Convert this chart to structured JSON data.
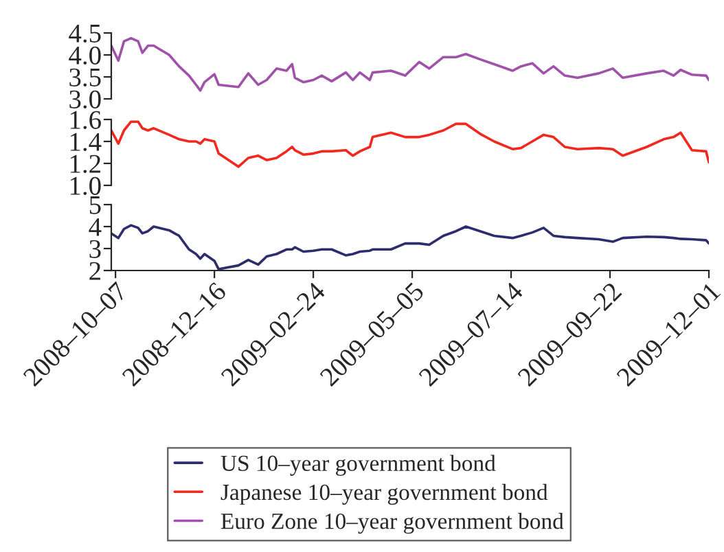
{
  "chart_data": [
    {
      "type": "line",
      "xlim": [
        "2008-10-04",
        "2009-12-01"
      ],
      "ylim": [
        3.0,
        4.5
      ],
      "yticks": [
        {
          "value": 3.0,
          "label": "3.0"
        },
        3.5,
        {
          "value": 4.0,
          "label": "4.0"
        },
        4.5
      ],
      "tick_labels": "y",
      "legend": "bottom",
      "grid": false,
      "series": [
        {
          "name": "Euro Zone 10–year government bond",
          "color": "#a052aa",
          "x": [
            "2008-10-04",
            "2008-10-09",
            "2008-10-13",
            "2008-10-18",
            "2008-10-23",
            "2008-10-26",
            "2008-10-30",
            "2008-11-03",
            "2008-11-14",
            "2008-11-21",
            "2008-11-28",
            "2008-12-03",
            "2008-12-06",
            "2008-12-09",
            "2008-12-16",
            "2008-12-19",
            "2009-01-02",
            "2009-01-09",
            "2009-01-16",
            "2009-01-22",
            "2009-01-29",
            "2009-02-05",
            "2009-02-09",
            "2009-02-11",
            "2009-02-17",
            "2009-02-24",
            "2009-03-02",
            "2009-03-09",
            "2009-03-19",
            "2009-03-24",
            "2009-03-29",
            "2009-04-05",
            "2009-04-07",
            "2009-04-20",
            "2009-04-30",
            "2009-05-10",
            "2009-05-17",
            "2009-05-27",
            "2009-06-05",
            "2009-06-12",
            "2009-06-22",
            "2009-07-02",
            "2009-07-15",
            "2009-07-21",
            "2009-07-29",
            "2009-08-06",
            "2009-08-13",
            "2009-08-21",
            "2009-08-30",
            "2009-09-14",
            "2009-09-24",
            "2009-10-01",
            "2009-10-18",
            "2009-10-30",
            "2009-11-06",
            "2009-11-11",
            "2009-11-19",
            "2009-11-29",
            "2009-12-01"
          ],
          "values": [
            4.21,
            3.87,
            4.31,
            4.38,
            4.31,
            4.05,
            4.21,
            4.21,
            4.0,
            3.74,
            3.53,
            3.32,
            3.19,
            3.38,
            3.56,
            3.32,
            3.27,
            3.58,
            3.32,
            3.43,
            3.69,
            3.64,
            3.79,
            3.48,
            3.38,
            3.43,
            3.53,
            3.4,
            3.6,
            3.43,
            3.6,
            3.43,
            3.6,
            3.64,
            3.53,
            3.84,
            3.69,
            3.95,
            3.95,
            4.02,
            3.9,
            3.79,
            3.64,
            3.74,
            3.81,
            3.58,
            3.74,
            3.53,
            3.48,
            3.58,
            3.69,
            3.48,
            3.58,
            3.64,
            3.53,
            3.66,
            3.55,
            3.53,
            3.43
          ]
        }
      ]
    },
    {
      "type": "line",
      "xlim": [
        "2008-10-04",
        "2009-12-01"
      ],
      "ylim": [
        1.0,
        1.6
      ],
      "yticks": [
        {
          "value": 1.0,
          "label": "1.0"
        },
        1.2,
        1.4,
        1.6
      ],
      "tick_labels": "y",
      "legend": "bottom",
      "grid": false,
      "series": [
        {
          "name": "Japanese 10–year government bond",
          "color": "#f0281e",
          "x": [
            "2008-10-04",
            "2008-10-09",
            "2008-10-13",
            "2008-10-18",
            "2008-10-23",
            "2008-10-26",
            "2008-10-30",
            "2008-11-03",
            "2008-11-14",
            "2008-11-21",
            "2008-11-28",
            "2008-12-03",
            "2008-12-06",
            "2008-12-09",
            "2008-12-16",
            "2008-12-19",
            "2009-01-02",
            "2009-01-09",
            "2009-01-16",
            "2009-01-22",
            "2009-01-29",
            "2009-02-05",
            "2009-02-09",
            "2009-02-11",
            "2009-02-17",
            "2009-02-24",
            "2009-03-02",
            "2009-03-09",
            "2009-03-19",
            "2009-03-24",
            "2009-03-29",
            "2009-04-05",
            "2009-04-07",
            "2009-04-20",
            "2009-04-30",
            "2009-05-10",
            "2009-05-17",
            "2009-05-27",
            "2009-06-05",
            "2009-06-12",
            "2009-06-22",
            "2009-07-02",
            "2009-07-15",
            "2009-07-21",
            "2009-07-29",
            "2009-08-06",
            "2009-08-13",
            "2009-08-21",
            "2009-08-30",
            "2009-09-14",
            "2009-09-24",
            "2009-10-01",
            "2009-10-18",
            "2009-10-30",
            "2009-11-06",
            "2009-11-11",
            "2009-11-19",
            "2009-11-29",
            "2009-12-01"
          ],
          "values": [
            1.5,
            1.38,
            1.5,
            1.58,
            1.58,
            1.52,
            1.5,
            1.52,
            1.46,
            1.42,
            1.4,
            1.4,
            1.38,
            1.42,
            1.4,
            1.29,
            1.17,
            1.25,
            1.27,
            1.23,
            1.25,
            1.31,
            1.35,
            1.32,
            1.28,
            1.29,
            1.31,
            1.31,
            1.32,
            1.27,
            1.31,
            1.35,
            1.44,
            1.48,
            1.44,
            1.44,
            1.46,
            1.5,
            1.56,
            1.56,
            1.47,
            1.4,
            1.33,
            1.34,
            1.4,
            1.46,
            1.44,
            1.35,
            1.33,
            1.34,
            1.33,
            1.27,
            1.35,
            1.42,
            1.44,
            1.48,
            1.32,
            1.31,
            1.21
          ]
        }
      ]
    },
    {
      "type": "line",
      "xlim": [
        "2008-10-04",
        "2009-12-01"
      ],
      "ylim": [
        2,
        5
      ],
      "yticks": [
        2,
        3,
        4,
        5
      ],
      "legend": "bottom",
      "grid": false,
      "xticks": [
        {
          "value": "2008-10-07",
          "label": "2008–10–07"
        },
        {
          "value": "2008-12-16",
          "label": "2008–12–16"
        },
        {
          "value": "2009-02-24",
          "label": "2009–02–24"
        },
        {
          "value": "2009-05-05",
          "label": "2009–05–05"
        },
        {
          "value": "2009-07-14",
          "label": "2009–07–14"
        },
        {
          "value": "2009-09-22",
          "label": "2009–09–22"
        },
        {
          "value": "2009-12-01",
          "label": "2009–12–01"
        }
      ],
      "series": [
        {
          "name": "US 10–year government bond",
          "color": "#2d2d6e",
          "x": [
            "2008-10-04",
            "2008-10-09",
            "2008-10-13",
            "2008-10-18",
            "2008-10-23",
            "2008-10-26",
            "2008-10-30",
            "2008-11-03",
            "2008-11-14",
            "2008-11-21",
            "2008-11-28",
            "2008-12-03",
            "2008-12-06",
            "2008-12-09",
            "2008-12-16",
            "2008-12-19",
            "2009-01-02",
            "2009-01-09",
            "2009-01-16",
            "2009-01-22",
            "2009-01-29",
            "2009-02-05",
            "2009-02-09",
            "2009-02-11",
            "2009-02-17",
            "2009-02-24",
            "2009-03-02",
            "2009-03-09",
            "2009-03-19",
            "2009-03-24",
            "2009-03-29",
            "2009-04-05",
            "2009-04-07",
            "2009-04-20",
            "2009-04-30",
            "2009-05-10",
            "2009-05-17",
            "2009-05-27",
            "2009-06-05",
            "2009-06-12",
            "2009-06-22",
            "2009-07-02",
            "2009-07-15",
            "2009-07-21",
            "2009-07-29",
            "2009-08-06",
            "2009-08-13",
            "2009-08-21",
            "2009-08-30",
            "2009-09-14",
            "2009-09-24",
            "2009-10-01",
            "2009-10-18",
            "2009-10-30",
            "2009-11-06",
            "2009-11-11",
            "2009-11-19",
            "2009-11-29",
            "2009-12-01"
          ],
          "values": [
            3.69,
            3.48,
            3.89,
            4.06,
            3.94,
            3.69,
            3.79,
            4.0,
            3.83,
            3.58,
            2.96,
            2.75,
            2.54,
            2.75,
            2.44,
            2.06,
            2.23,
            2.48,
            2.27,
            2.64,
            2.75,
            2.96,
            2.96,
            3.06,
            2.86,
            2.9,
            2.96,
            2.96,
            2.69,
            2.75,
            2.86,
            2.9,
            2.96,
            2.96,
            3.23,
            3.23,
            3.17,
            3.58,
            3.79,
            4.0,
            3.79,
            3.58,
            3.48,
            3.58,
            3.73,
            3.94,
            3.58,
            3.52,
            3.48,
            3.42,
            3.31,
            3.48,
            3.54,
            3.52,
            3.48,
            3.44,
            3.42,
            3.38,
            3.23
          ]
        }
      ]
    }
  ]
}
